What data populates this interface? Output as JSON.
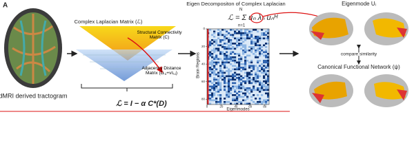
{
  "panel_label": "A",
  "tractogram": {
    "caption": "dMRI derived tractogram"
  },
  "laplacian": {
    "title": "Complex Laplacian Matrix (ℒ)",
    "structural": "Structural Connectivity Matrix (C)",
    "adjacency": "Adjacency Distance Matrix (Dᵢ,ⱼ+vτᵢ,ⱼ)",
    "equation": "ℒ = I − α C*(D)"
  },
  "eigen": {
    "title": "Eigen Decompositon of Complex Laplacian",
    "equation": "ℒ = Σ uₙ λₙ uₙᴴ",
    "sum_upper": "N",
    "sum_lower": "n=1",
    "y_label": "Brain Regions",
    "x_label": "Eigenmodes",
    "xlim": [
      0,
      86
    ],
    "ylim": [
      0,
      86
    ],
    "xticks": [
      0,
      20,
      40,
      60,
      80
    ],
    "yticks": [
      0,
      20,
      40,
      60,
      80
    ]
  },
  "comparison": {
    "eigenmode_title": "Eigenmode Uᵢ",
    "compare": "compare similarity",
    "canonical_title": "Canonical Functional Network (ψ)"
  }
}
